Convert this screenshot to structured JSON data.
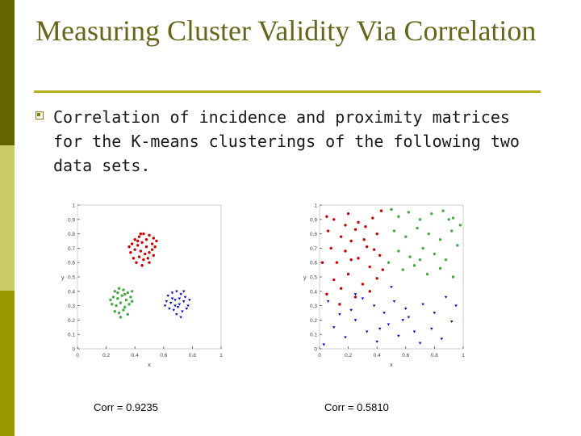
{
  "slide": {
    "title": "Measuring Cluster Validity Via Correlation",
    "bullet": "Correlation of incidence and proximity matrices for the K-means clusterings of the following two data sets.",
    "accent_color": "#b2b21f",
    "title_color": "#66661a"
  },
  "chart_data": [
    {
      "type": "scatter",
      "title": "",
      "xlabel": "x",
      "ylabel": "y",
      "xlim": [
        0,
        1
      ],
      "ylim": [
        0,
        1
      ],
      "xticks": [
        "0",
        "0.2",
        "0.4",
        "0.6",
        "0.8",
        "1"
      ],
      "yticks": [
        "0",
        "0.1",
        "0.2",
        "0.3",
        "0.4",
        "0.5",
        "0.6",
        "0.7",
        "0.8",
        "0.9",
        "1"
      ],
      "annotation": "Corr = 0.9235",
      "series": [
        {
          "color": "#cc0000",
          "marker": "dot",
          "points": [
            [
              0.4,
              0.76
            ],
            [
              0.43,
              0.78
            ],
            [
              0.46,
              0.8
            ],
            [
              0.5,
              0.79
            ],
            [
              0.53,
              0.77
            ],
            [
              0.38,
              0.73
            ],
            [
              0.42,
              0.72
            ],
            [
              0.45,
              0.74
            ],
            [
              0.48,
              0.71
            ],
            [
              0.52,
              0.73
            ],
            [
              0.55,
              0.75
            ],
            [
              0.4,
              0.69
            ],
            [
              0.44,
              0.68
            ],
            [
              0.47,
              0.66
            ],
            [
              0.5,
              0.67
            ],
            [
              0.37,
              0.67
            ],
            [
              0.43,
              0.64
            ],
            [
              0.46,
              0.62
            ],
            [
              0.49,
              0.63
            ],
            [
              0.41,
              0.6
            ],
            [
              0.45,
              0.58
            ],
            [
              0.52,
              0.69
            ],
            [
              0.39,
              0.63
            ],
            [
              0.48,
              0.76
            ],
            [
              0.54,
              0.71
            ],
            [
              0.42,
              0.75
            ],
            [
              0.5,
              0.6
            ],
            [
              0.44,
              0.8
            ],
            [
              0.36,
              0.71
            ],
            [
              0.53,
              0.65
            ]
          ]
        },
        {
          "color": "#0000cc",
          "marker": "triangle",
          "points": [
            [
              0.63,
              0.37
            ],
            [
              0.66,
              0.39
            ],
            [
              0.69,
              0.4
            ],
            [
              0.72,
              0.38
            ],
            [
              0.75,
              0.36
            ],
            [
              0.62,
              0.33
            ],
            [
              0.65,
              0.32
            ],
            [
              0.68,
              0.34
            ],
            [
              0.71,
              0.31
            ],
            [
              0.74,
              0.33
            ],
            [
              0.77,
              0.3
            ],
            [
              0.64,
              0.28
            ],
            [
              0.67,
              0.27
            ],
            [
              0.7,
              0.29
            ],
            [
              0.73,
              0.26
            ],
            [
              0.76,
              0.28
            ],
            [
              0.69,
              0.24
            ],
            [
              0.72,
              0.22
            ],
            [
              0.61,
              0.3
            ],
            [
              0.66,
              0.35
            ],
            [
              0.74,
              0.4
            ],
            [
              0.78,
              0.34
            ],
            [
              0.71,
              0.35
            ],
            [
              0.68,
              0.3
            ]
          ]
        },
        {
          "color": "#44aa44",
          "marker": "dot",
          "points": [
            [
              0.26,
              0.4
            ],
            [
              0.29,
              0.42
            ],
            [
              0.32,
              0.41
            ],
            [
              0.35,
              0.39
            ],
            [
              0.38,
              0.4
            ],
            [
              0.25,
              0.36
            ],
            [
              0.28,
              0.35
            ],
            [
              0.31,
              0.37
            ],
            [
              0.34,
              0.34
            ],
            [
              0.37,
              0.36
            ],
            [
              0.24,
              0.31
            ],
            [
              0.27,
              0.3
            ],
            [
              0.3,
              0.32
            ],
            [
              0.33,
              0.29
            ],
            [
              0.36,
              0.31
            ],
            [
              0.26,
              0.26
            ],
            [
              0.29,
              0.25
            ],
            [
              0.32,
              0.27
            ],
            [
              0.35,
              0.24
            ],
            [
              0.3,
              0.22
            ],
            [
              0.33,
              0.38
            ],
            [
              0.28,
              0.39
            ],
            [
              0.38,
              0.33
            ],
            [
              0.23,
              0.34
            ]
          ]
        }
      ]
    },
    {
      "type": "scatter",
      "title": "",
      "xlabel": "x",
      "ylabel": "y",
      "xlim": [
        0,
        1
      ],
      "ylim": [
        0,
        1
      ],
      "xticks": [
        "0",
        "0.2",
        "0.4",
        "0.6",
        "0.8",
        "1"
      ],
      "yticks": [
        "0",
        "0.1",
        "0.2",
        "0.3",
        "0.4",
        "0.5",
        "0.6",
        "0.7",
        "0.8",
        "0.9",
        "1"
      ],
      "annotation": "Corr = 0.5810",
      "series": [
        {
          "color": "#cc0000",
          "marker": "dot",
          "points": [
            [
              0.05,
              0.92
            ],
            [
              0.1,
              0.9
            ],
            [
              0.2,
              0.94
            ],
            [
              0.27,
              0.88
            ],
            [
              0.37,
              0.91
            ],
            [
              0.43,
              0.96
            ],
            [
              0.06,
              0.82
            ],
            [
              0.15,
              0.78
            ],
            [
              0.25,
              0.83
            ],
            [
              0.31,
              0.76
            ],
            [
              0.4,
              0.8
            ],
            [
              0.08,
              0.7
            ],
            [
              0.18,
              0.68
            ],
            [
              0.27,
              0.63
            ],
            [
              0.33,
              0.71
            ],
            [
              0.12,
              0.6
            ],
            [
              0.22,
              0.62
            ],
            [
              0.35,
              0.57
            ],
            [
              0.42,
              0.65
            ],
            [
              0.1,
              0.48
            ],
            [
              0.2,
              0.52
            ],
            [
              0.3,
              0.45
            ],
            [
              0.4,
              0.49
            ],
            [
              0.05,
              0.38
            ],
            [
              0.15,
              0.42
            ],
            [
              0.25,
              0.36
            ],
            [
              0.35,
              0.4
            ],
            [
              0.44,
              0.55
            ],
            [
              0.02,
              0.6
            ],
            [
              0.18,
              0.86
            ],
            [
              0.32,
              0.85
            ],
            [
              0.38,
              0.69
            ],
            [
              0.14,
              0.31
            ],
            [
              0.22,
              0.75
            ]
          ]
        },
        {
          "color": "#0000cc",
          "marker": "triangle",
          "points": [
            [
              0.03,
              0.03
            ],
            [
              0.1,
              0.15
            ],
            [
              0.18,
              0.08
            ],
            [
              0.25,
              0.2
            ],
            [
              0.33,
              0.12
            ],
            [
              0.4,
              0.05
            ],
            [
              0.48,
              0.17
            ],
            [
              0.55,
              0.09
            ],
            [
              0.62,
              0.22
            ],
            [
              0.7,
              0.04
            ],
            [
              0.78,
              0.14
            ],
            [
              0.85,
              0.07
            ],
            [
              0.92,
              0.19
            ],
            [
              0.95,
              0.3
            ],
            [
              0.88,
              0.36
            ],
            [
              0.8,
              0.25
            ],
            [
              0.72,
              0.31
            ],
            [
              0.6,
              0.28
            ],
            [
              0.52,
              0.33
            ],
            [
              0.45,
              0.25
            ],
            [
              0.38,
              0.3
            ],
            [
              0.3,
              0.35
            ],
            [
              0.22,
              0.27
            ],
            [
              0.14,
              0.24
            ],
            [
              0.06,
              0.33
            ],
            [
              0.42,
              0.14
            ],
            [
              0.66,
              0.12
            ],
            [
              0.58,
              0.2
            ],
            [
              0.25,
              0.38
            ],
            [
              0.5,
              0.43
            ]
          ]
        },
        {
          "color": "#44aa44",
          "marker": "dot",
          "points": [
            [
              0.5,
              0.97
            ],
            [
              0.55,
              0.92
            ],
            [
              0.62,
              0.95
            ],
            [
              0.7,
              0.9
            ],
            [
              0.78,
              0.94
            ],
            [
              0.86,
              0.96
            ],
            [
              0.93,
              0.91
            ],
            [
              0.52,
              0.82
            ],
            [
              0.6,
              0.78
            ],
            [
              0.68,
              0.84
            ],
            [
              0.76,
              0.8
            ],
            [
              0.84,
              0.76
            ],
            [
              0.92,
              0.82
            ],
            [
              0.55,
              0.68
            ],
            [
              0.63,
              0.64
            ],
            [
              0.72,
              0.7
            ],
            [
              0.8,
              0.66
            ],
            [
              0.88,
              0.62
            ],
            [
              0.96,
              0.72
            ],
            [
              0.58,
              0.55
            ],
            [
              0.66,
              0.58
            ],
            [
              0.75,
              0.52
            ],
            [
              0.84,
              0.56
            ],
            [
              0.93,
              0.5
            ],
            [
              0.48,
              0.6
            ],
            [
              0.98,
              0.86
            ],
            [
              0.7,
              0.62
            ],
            [
              0.9,
              0.9
            ]
          ]
        }
      ]
    }
  ]
}
